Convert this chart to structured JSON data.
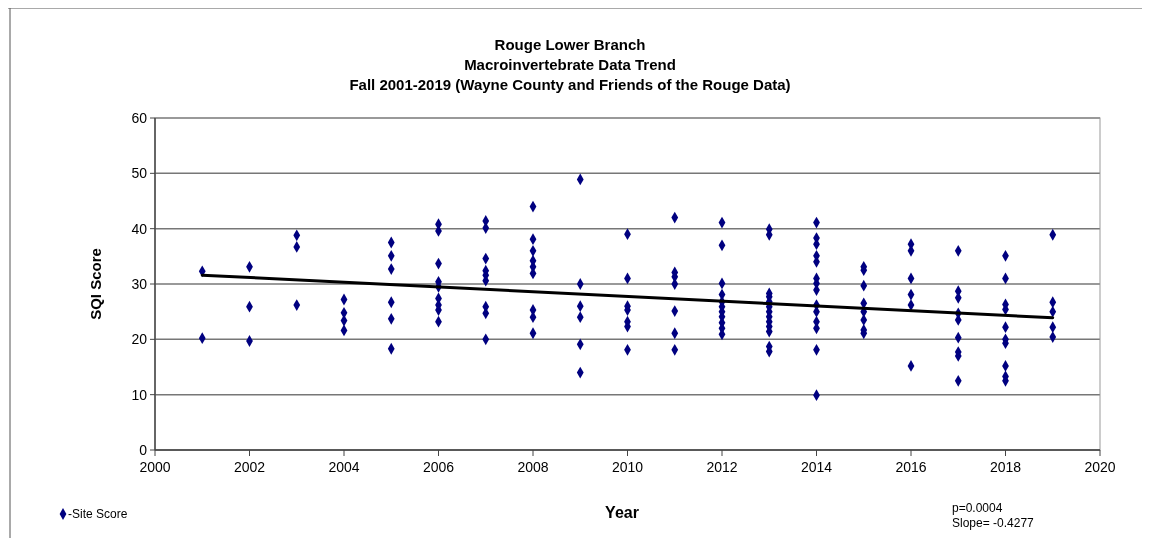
{
  "chart_data": {
    "type": "scatter",
    "title": "Rouge Lower Branch\nMacroinvertebrate Data Trend\nFall 2001-2019 (Wayne County and Friends of the Rouge Data)",
    "xlabel": "Year",
    "ylabel": "SQI Score",
    "xlim": [
      2000,
      2020
    ],
    "xticks": [
      2000,
      2002,
      2004,
      2006,
      2008,
      2010,
      2012,
      2014,
      2016,
      2018,
      2020
    ],
    "ylim": [
      0,
      60
    ],
    "yticks": [
      0,
      10,
      20,
      30,
      40,
      50,
      60
    ],
    "grid": "y",
    "legend": "bottom left",
    "marker": "diamond",
    "annotations": [
      "p=0.0004",
      "Slope= -0.4277"
    ],
    "series": [
      {
        "name": "-Site Score",
        "type": "scatter",
        "color": "#000080",
        "x": [
          2001,
          2001,
          2002,
          2002,
          2002,
          2003,
          2003,
          2003,
          2004,
          2004,
          2004,
          2004,
          2005,
          2005,
          2005,
          2005,
          2005,
          2005,
          2006,
          2006,
          2006,
          2006,
          2006,
          2006,
          2006,
          2006,
          2006,
          2007,
          2007,
          2007,
          2007,
          2007,
          2007,
          2007,
          2007,
          2007,
          2008,
          2008,
          2008,
          2008,
          2008,
          2008,
          2008,
          2008,
          2008,
          2009,
          2009,
          2009,
          2009,
          2009,
          2009,
          2010,
          2010,
          2010,
          2010,
          2010,
          2010,
          2010,
          2011,
          2011,
          2011,
          2011,
          2011,
          2011,
          2011,
          2012,
          2012,
          2012,
          2012,
          2012,
          2012,
          2012,
          2012,
          2012,
          2012,
          2012,
          2013,
          2013,
          2013,
          2013,
          2013,
          2013,
          2013,
          2013,
          2013,
          2013,
          2013,
          2013,
          2013,
          2014,
          2014,
          2014,
          2014,
          2014,
          2014,
          2014,
          2014,
          2014,
          2014,
          2014,
          2014,
          2014,
          2014,
          2015,
          2015,
          2015,
          2015,
          2015,
          2015,
          2015,
          2015,
          2016,
          2016,
          2016,
          2016,
          2016,
          2016,
          2017,
          2017,
          2017,
          2017,
          2017,
          2017,
          2017,
          2017,
          2017,
          2018,
          2018,
          2018,
          2018,
          2018,
          2018,
          2018,
          2018,
          2018,
          2018,
          2019,
          2019,
          2019,
          2019,
          2019
        ],
        "values": [
          32.3,
          20.2,
          33.1,
          25.9,
          19.7,
          38.8,
          36.7,
          26.2,
          27.2,
          24.8,
          23.4,
          21.6,
          37.5,
          35.1,
          32.7,
          26.7,
          23.7,
          18.3,
          40.8,
          39.6,
          33.7,
          30.4,
          29.5,
          27.4,
          26.2,
          25.3,
          23.2,
          41.4,
          40.1,
          34.6,
          32.4,
          31.6,
          30.6,
          25.9,
          24.7,
          20.0,
          44.0,
          38.1,
          36.0,
          34.2,
          33.1,
          31.9,
          25.3,
          24.0,
          21.1,
          48.9,
          30.0,
          26.0,
          24.0,
          19.1,
          14.0,
          39.0,
          31.0,
          26.0,
          25.3,
          23.2,
          22.3,
          18.1,
          42.0,
          32.1,
          31.3,
          30.0,
          25.1,
          21.1,
          18.1,
          41.1,
          37.0,
          30.1,
          28.1,
          26.8,
          25.9,
          25.0,
          24.1,
          23.0,
          22.0,
          20.9,
          39.9,
          38.9,
          28.3,
          27.7,
          26.8,
          25.9,
          25.0,
          24.1,
          23.2,
          22.3,
          21.4,
          18.7,
          17.8,
          41.1,
          38.3,
          37.2,
          35.1,
          34.0,
          31.0,
          30.1,
          28.9,
          26.2,
          25.0,
          23.2,
          22.0,
          18.1,
          9.9,
          33.1,
          32.5,
          29.7,
          26.5,
          25.0,
          23.5,
          21.7,
          21.1,
          37.2,
          36.0,
          31.0,
          28.1,
          26.2,
          15.2,
          36.0,
          28.7,
          27.5,
          24.7,
          23.5,
          20.3,
          17.7,
          17.0,
          12.5,
          35.1,
          31.0,
          26.3,
          25.4,
          22.2,
          20.0,
          19.3,
          15.2,
          13.3,
          12.5,
          38.9,
          26.7,
          25.0,
          22.2,
          20.4
        ]
      },
      {
        "type": "line",
        "color": "#000000",
        "marker": "none",
        "x": [
          2001,
          2019
        ],
        "values": [
          31.6,
          23.9
        ]
      }
    ]
  }
}
